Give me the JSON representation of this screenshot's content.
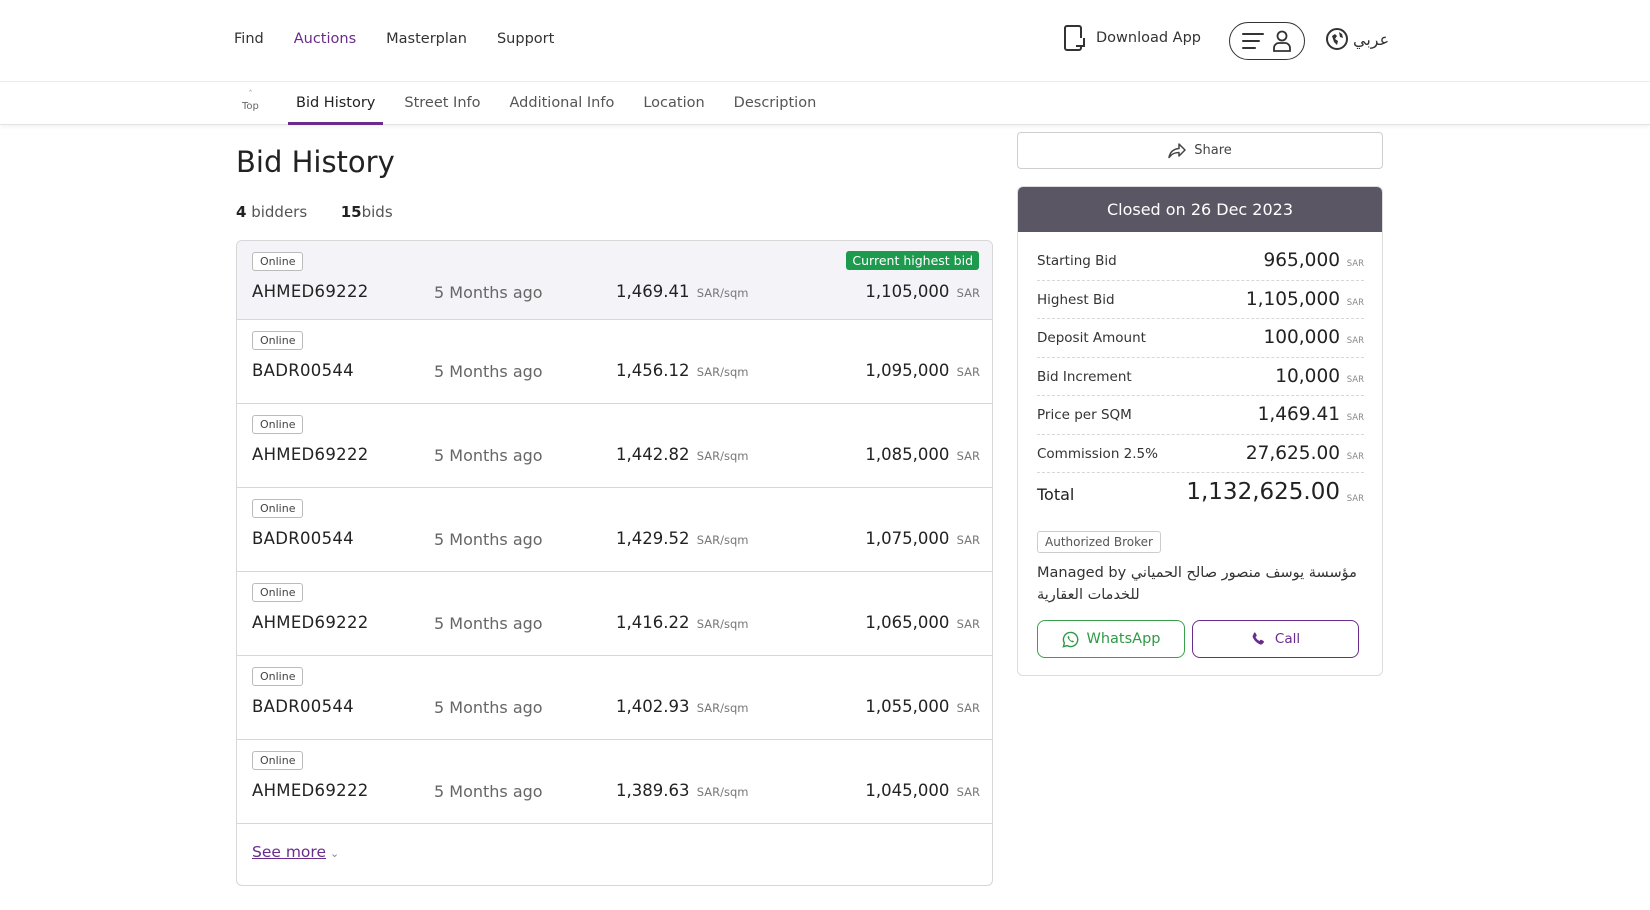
{
  "nav": {
    "links": [
      "Find",
      "Auctions",
      "Masterplan",
      "Support"
    ],
    "active": "Auctions",
    "download_app": "Download App",
    "language": "عربي"
  },
  "subnav": {
    "top_label": "Top",
    "tabs": [
      "Bid History",
      "Street Info",
      "Additional Info",
      "Location",
      "Description"
    ],
    "active": "Bid History"
  },
  "bid_history": {
    "title": "Bid History",
    "bidders_count": "4",
    "bidders_label": "bidders",
    "bids_count": "15",
    "bids_label": "bids",
    "highest_badge": "Current highest bid",
    "unit_sqm": "SAR/sqm",
    "unit_amount": "SAR",
    "see_more": "See more",
    "rows": [
      {
        "channel": "Online",
        "bidder": "AHMED69222",
        "time": "5 Months ago",
        "price_per_sqm": "1,469.41",
        "amount": "1,105,000"
      },
      {
        "channel": "Online",
        "bidder": "BADR00544",
        "time": "5 Months ago",
        "price_per_sqm": "1,456.12",
        "amount": "1,095,000"
      },
      {
        "channel": "Online",
        "bidder": "AHMED69222",
        "time": "5 Months ago",
        "price_per_sqm": "1,442.82",
        "amount": "1,085,000"
      },
      {
        "channel": "Online",
        "bidder": "BADR00544",
        "time": "5 Months ago",
        "price_per_sqm": "1,429.52",
        "amount": "1,075,000"
      },
      {
        "channel": "Online",
        "bidder": "AHMED69222",
        "time": "5 Months ago",
        "price_per_sqm": "1,416.22",
        "amount": "1,065,000"
      },
      {
        "channel": "Online",
        "bidder": "BADR00544",
        "time": "5 Months ago",
        "price_per_sqm": "1,402.93",
        "amount": "1,055,000"
      },
      {
        "channel": "Online",
        "bidder": "AHMED69222",
        "time": "5 Months ago",
        "price_per_sqm": "1,389.63",
        "amount": "1,045,000"
      }
    ]
  },
  "sidebar": {
    "share": "Share",
    "status": "Closed on 26 Dec 2023",
    "currency": "SAR",
    "summary": [
      {
        "label": "Starting Bid",
        "value": "965,000"
      },
      {
        "label": "Highest Bid",
        "value": "1,105,000"
      },
      {
        "label": "Deposit Amount",
        "value": "100,000"
      },
      {
        "label": "Bid Increment",
        "value": "10,000"
      },
      {
        "label": "Price per SQM",
        "value": "1,469.41"
      },
      {
        "label": "Commission 2.5%",
        "value": "27,625.00"
      },
      {
        "label": "Total",
        "value": "1,132,625.00"
      }
    ],
    "broker_badge": "Authorized Broker",
    "managed_by": "Managed by مؤسسة يوسف منصور صالح الحمياني للخدمات العقارية",
    "whatsapp": "WhatsApp",
    "call": "Call"
  },
  "colors": {
    "accent": "#6a2c8c",
    "success": "#1e9a4f",
    "header_dark": "#5b5663",
    "whatsapp": "#3aa04e"
  }
}
